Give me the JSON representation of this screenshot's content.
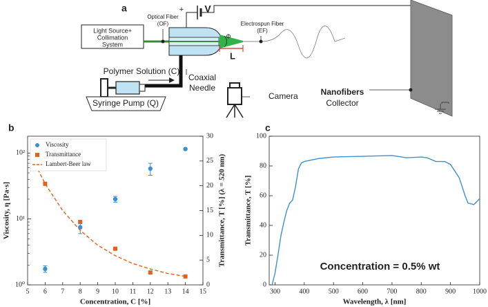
{
  "diagram": {
    "label": "a",
    "texts": [
      "Optical Fiber",
      "(OF)",
      "Light Source+",
      "Collimation",
      "System",
      "+",
      "V",
      "Electrospun Fiber",
      "(EF)",
      "Φ",
      "L",
      "Polymer Solution (C)",
      "Coaxial",
      "Needle",
      "Camera",
      "Syringe Pump (Q)",
      "Nanofibers",
      "Collector"
    ]
  },
  "chart_data": [
    {
      "type": "scatter",
      "label": "b",
      "xlabel": "Concentration, C [%]",
      "ylabel": "Viscosity, η [Pa·s]",
      "y2label": "Transmittance, T [%] (λ = 520 nm)",
      "xlim": [
        5,
        15
      ],
      "xticks": [
        5,
        6,
        7,
        8,
        9,
        10,
        11,
        12,
        13,
        14,
        15
      ],
      "ylim": [
        1,
        180
      ],
      "ylog": true,
      "yticks": [
        {
          "value": 1,
          "label": "10⁰"
        },
        {
          "value": 10,
          "label": "10¹"
        },
        {
          "value": 100,
          "label": "10²"
        }
      ],
      "y2lim": [
        0,
        30
      ],
      "y2ticks": [
        0,
        5,
        10,
        15,
        20,
        25,
        30
      ],
      "legend": "upper left",
      "series": [
        {
          "name": "Viscosity",
          "color": "#3d8fd1",
          "marker": "circle",
          "x": [
            6,
            8,
            10,
            12,
            14
          ],
          "values": [
            1.75,
            7.5,
            20,
            58,
            115
          ],
          "errors": [
            0.2,
            1.5,
            2,
            12,
            4
          ]
        },
        {
          "name": "Transmittance",
          "color": "#e2621b",
          "marker": "square",
          "axis": "y2",
          "x": [
            6,
            8,
            10,
            12,
            14
          ],
          "values": [
            20.4,
            12.7,
            7.3,
            2.5,
            1.7
          ]
        },
        {
          "name": "Lambert-Beer law",
          "color": "#e2621b",
          "line_style": "dashed",
          "axis": "y2",
          "x": [
            5.3,
            6,
            7,
            8,
            9,
            10,
            11,
            12,
            13,
            14
          ],
          "values": [
            25.3,
            20.4,
            15.0,
            11.0,
            8.0,
            5.9,
            4.3,
            3.2,
            2.3,
            1.7
          ]
        }
      ]
    },
    {
      "type": "line",
      "label": "c",
      "xlabel": "Wavelength, λ [nm]",
      "ylabel": "Transmittance, T [%]",
      "annotation": "Concentration = 0.5% wt",
      "xlim": [
        280,
        1000
      ],
      "xticks": [
        300,
        400,
        500,
        600,
        700,
        800,
        900,
        1000
      ],
      "ylim": [
        0,
        100
      ],
      "yticks": [
        0,
        20,
        40,
        60,
        80,
        100
      ],
      "x": [
        290,
        300,
        310,
        320,
        330,
        340,
        350,
        360,
        370,
        380,
        390,
        400,
        450,
        500,
        600,
        700,
        750,
        800,
        820,
        850,
        880,
        900,
        930,
        950,
        960,
        980,
        1000
      ],
      "series": [
        {
          "color": "#3d8fd1",
          "line_style": "solid",
          "values": [
            0,
            8,
            20,
            33,
            42,
            50,
            55,
            57,
            66,
            78,
            82,
            83,
            85,
            86,
            86.5,
            87,
            85.5,
            86,
            85.5,
            83,
            83,
            81,
            72,
            60,
            55,
            54,
            58
          ]
        }
      ]
    }
  ]
}
